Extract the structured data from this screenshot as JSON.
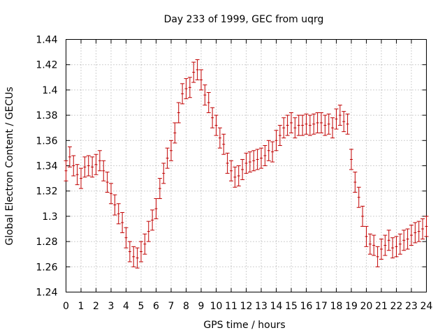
{
  "chart_data": {
    "type": "scatter",
    "title": "Day 233 of 1999, GEC from uqrg",
    "xlabel": "GPS time / hours",
    "ylabel": "Global Electron Content / GECUs",
    "xlim": [
      0,
      24
    ],
    "ylim": [
      1.24,
      1.44
    ],
    "x_ticks": [
      0,
      1,
      2,
      3,
      4,
      5,
      6,
      7,
      8,
      9,
      10,
      11,
      12,
      13,
      14,
      15,
      16,
      17,
      18,
      19,
      20,
      21,
      22,
      23,
      24
    ],
    "x_tick_labels": [
      "0",
      "1",
      "2",
      "3",
      "4",
      "5",
      "6",
      "7",
      "8",
      "9",
      "10",
      "11",
      "12",
      "13",
      "14",
      "15",
      "16",
      "17",
      "18",
      "19",
      "20",
      "21",
      "22",
      "23",
      "24"
    ],
    "y_ticks": [
      1.24,
      1.26,
      1.28,
      1.3,
      1.32,
      1.34,
      1.36,
      1.38,
      1.4,
      1.42,
      1.44
    ],
    "y_tick_labels": [
      "1.24",
      "1.26",
      "1.28",
      "1.3",
      "1.32",
      "1.34",
      "1.36",
      "1.38",
      "1.4",
      "1.42",
      "1.44"
    ],
    "grid": true,
    "error_bar": 0.008,
    "color": "#c00000",
    "series": [
      {
        "name": "GEC",
        "x": [
          0,
          0.25,
          0.5,
          0.75,
          1,
          1.25,
          1.5,
          1.75,
          2,
          2.25,
          2.5,
          2.75,
          3,
          3.25,
          3.5,
          3.75,
          4,
          4.25,
          4.5,
          4.75,
          5,
          5.25,
          5.5,
          5.75,
          6,
          6.25,
          6.5,
          6.75,
          7,
          7.25,
          7.5,
          7.75,
          8,
          8.25,
          8.5,
          8.75,
          9,
          9.25,
          9.5,
          9.75,
          10,
          10.25,
          10.5,
          10.75,
          11,
          11.25,
          11.5,
          11.75,
          12,
          12.25,
          12.5,
          12.75,
          13,
          13.25,
          13.5,
          13.75,
          14,
          14.25,
          14.5,
          14.75,
          15,
          15.25,
          15.5,
          15.75,
          16,
          16.25,
          16.5,
          16.75,
          17,
          17.25,
          17.5,
          17.75,
          18,
          18.25,
          18.5,
          18.75,
          19,
          19.25,
          19.5,
          19.75,
          20,
          20.25,
          20.5,
          20.75,
          21,
          21.25,
          21.5,
          21.75,
          22,
          22.25,
          22.5,
          22.75,
          23,
          23.25,
          23.5,
          23.75,
          24
        ],
        "y": [
          1.336,
          1.347,
          1.34,
          1.333,
          1.33,
          1.339,
          1.34,
          1.339,
          1.341,
          1.344,
          1.336,
          1.327,
          1.318,
          1.309,
          1.302,
          1.295,
          1.283,
          1.272,
          1.268,
          1.267,
          1.272,
          1.278,
          1.288,
          1.297,
          1.306,
          1.322,
          1.334,
          1.346,
          1.352,
          1.366,
          1.382,
          1.397,
          1.401,
          1.402,
          1.414,
          1.416,
          1.408,
          1.396,
          1.39,
          1.378,
          1.372,
          1.362,
          1.357,
          1.342,
          1.336,
          1.331,
          1.332,
          1.337,
          1.342,
          1.343,
          1.344,
          1.345,
          1.346,
          1.348,
          1.352,
          1.351,
          1.36,
          1.364,
          1.37,
          1.372,
          1.374,
          1.37,
          1.372,
          1.372,
          1.373,
          1.372,
          1.373,
          1.374,
          1.374,
          1.372,
          1.373,
          1.37,
          1.377,
          1.38,
          1.375,
          1.373,
          1.345,
          1.327,
          1.315,
          1.3,
          1.284,
          1.278,
          1.277,
          1.268,
          1.274,
          1.277,
          1.281,
          1.275,
          1.276,
          1.278,
          1.281,
          1.282,
          1.285,
          1.287,
          1.288,
          1.29,
          1.292
        ]
      }
    ]
  }
}
